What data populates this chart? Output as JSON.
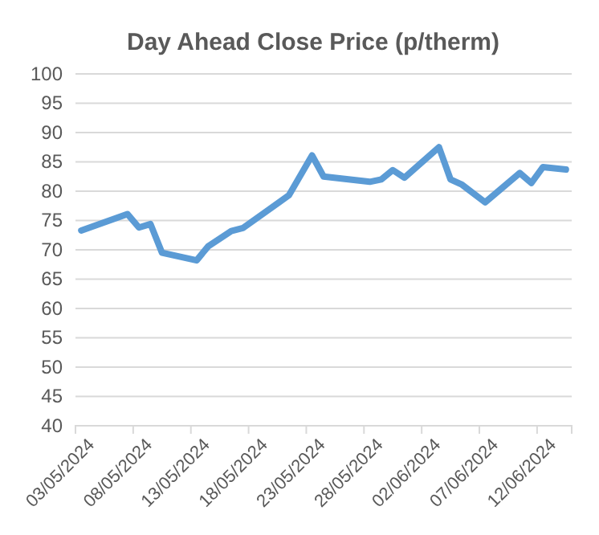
{
  "chart_data": {
    "type": "line",
    "title": "Day Ahead Close Price (p/therm)",
    "x": [
      "2024-05-03",
      "2024-05-07",
      "2024-05-08",
      "2024-05-09",
      "2024-05-10",
      "2024-05-13",
      "2024-05-14",
      "2024-05-16",
      "2024-05-17",
      "2024-05-21",
      "2024-05-23",
      "2024-05-24",
      "2024-05-28",
      "2024-05-29",
      "2024-05-30",
      "2024-05-31",
      "2024-06-03",
      "2024-06-04",
      "2024-06-05",
      "2024-06-07",
      "2024-06-10",
      "2024-06-11",
      "2024-06-12",
      "2024-06-14"
    ],
    "series": [
      {
        "color": "#5b9bd5",
        "values": [
          73.3,
          76.1,
          73.8,
          74.4,
          69.5,
          68.2,
          70.6,
          73.2,
          73.7,
          79.3,
          86.1,
          82.5,
          81.6,
          82.0,
          83.6,
          82.3,
          87.5,
          82.0,
          81.1,
          78.1,
          83.1,
          81.4,
          84.1,
          83.7
        ]
      }
    ],
    "xlim": [
      "2024-05-02T12:00",
      "2024-06-14T12:00"
    ],
    "xticks": [
      {
        "value": "2024-05-02T12:00",
        "label": "03/05/2024"
      },
      {
        "value": "2024-05-07T12:00",
        "label": "08/05/2024"
      },
      {
        "value": "2024-05-12T12:00",
        "label": "13/05/2024"
      },
      {
        "value": "2024-05-17T12:00",
        "label": "18/05/2024"
      },
      {
        "value": "2024-05-22T12:00",
        "label": "23/05/2024"
      },
      {
        "value": "2024-05-27T12:00",
        "label": "28/05/2024"
      },
      {
        "value": "2024-06-01T12:00",
        "label": "02/06/2024"
      },
      {
        "value": "2024-06-06T12:00",
        "label": "07/06/2024"
      },
      {
        "value": "2024-06-11T12:00",
        "label": "12/06/2024"
      }
    ],
    "ylim": [
      40,
      100
    ],
    "yticks": [
      40,
      45,
      50,
      55,
      60,
      65,
      70,
      75,
      80,
      85,
      90,
      95,
      100
    ],
    "grid": "y",
    "marker": "none",
    "line_style": "solid"
  }
}
